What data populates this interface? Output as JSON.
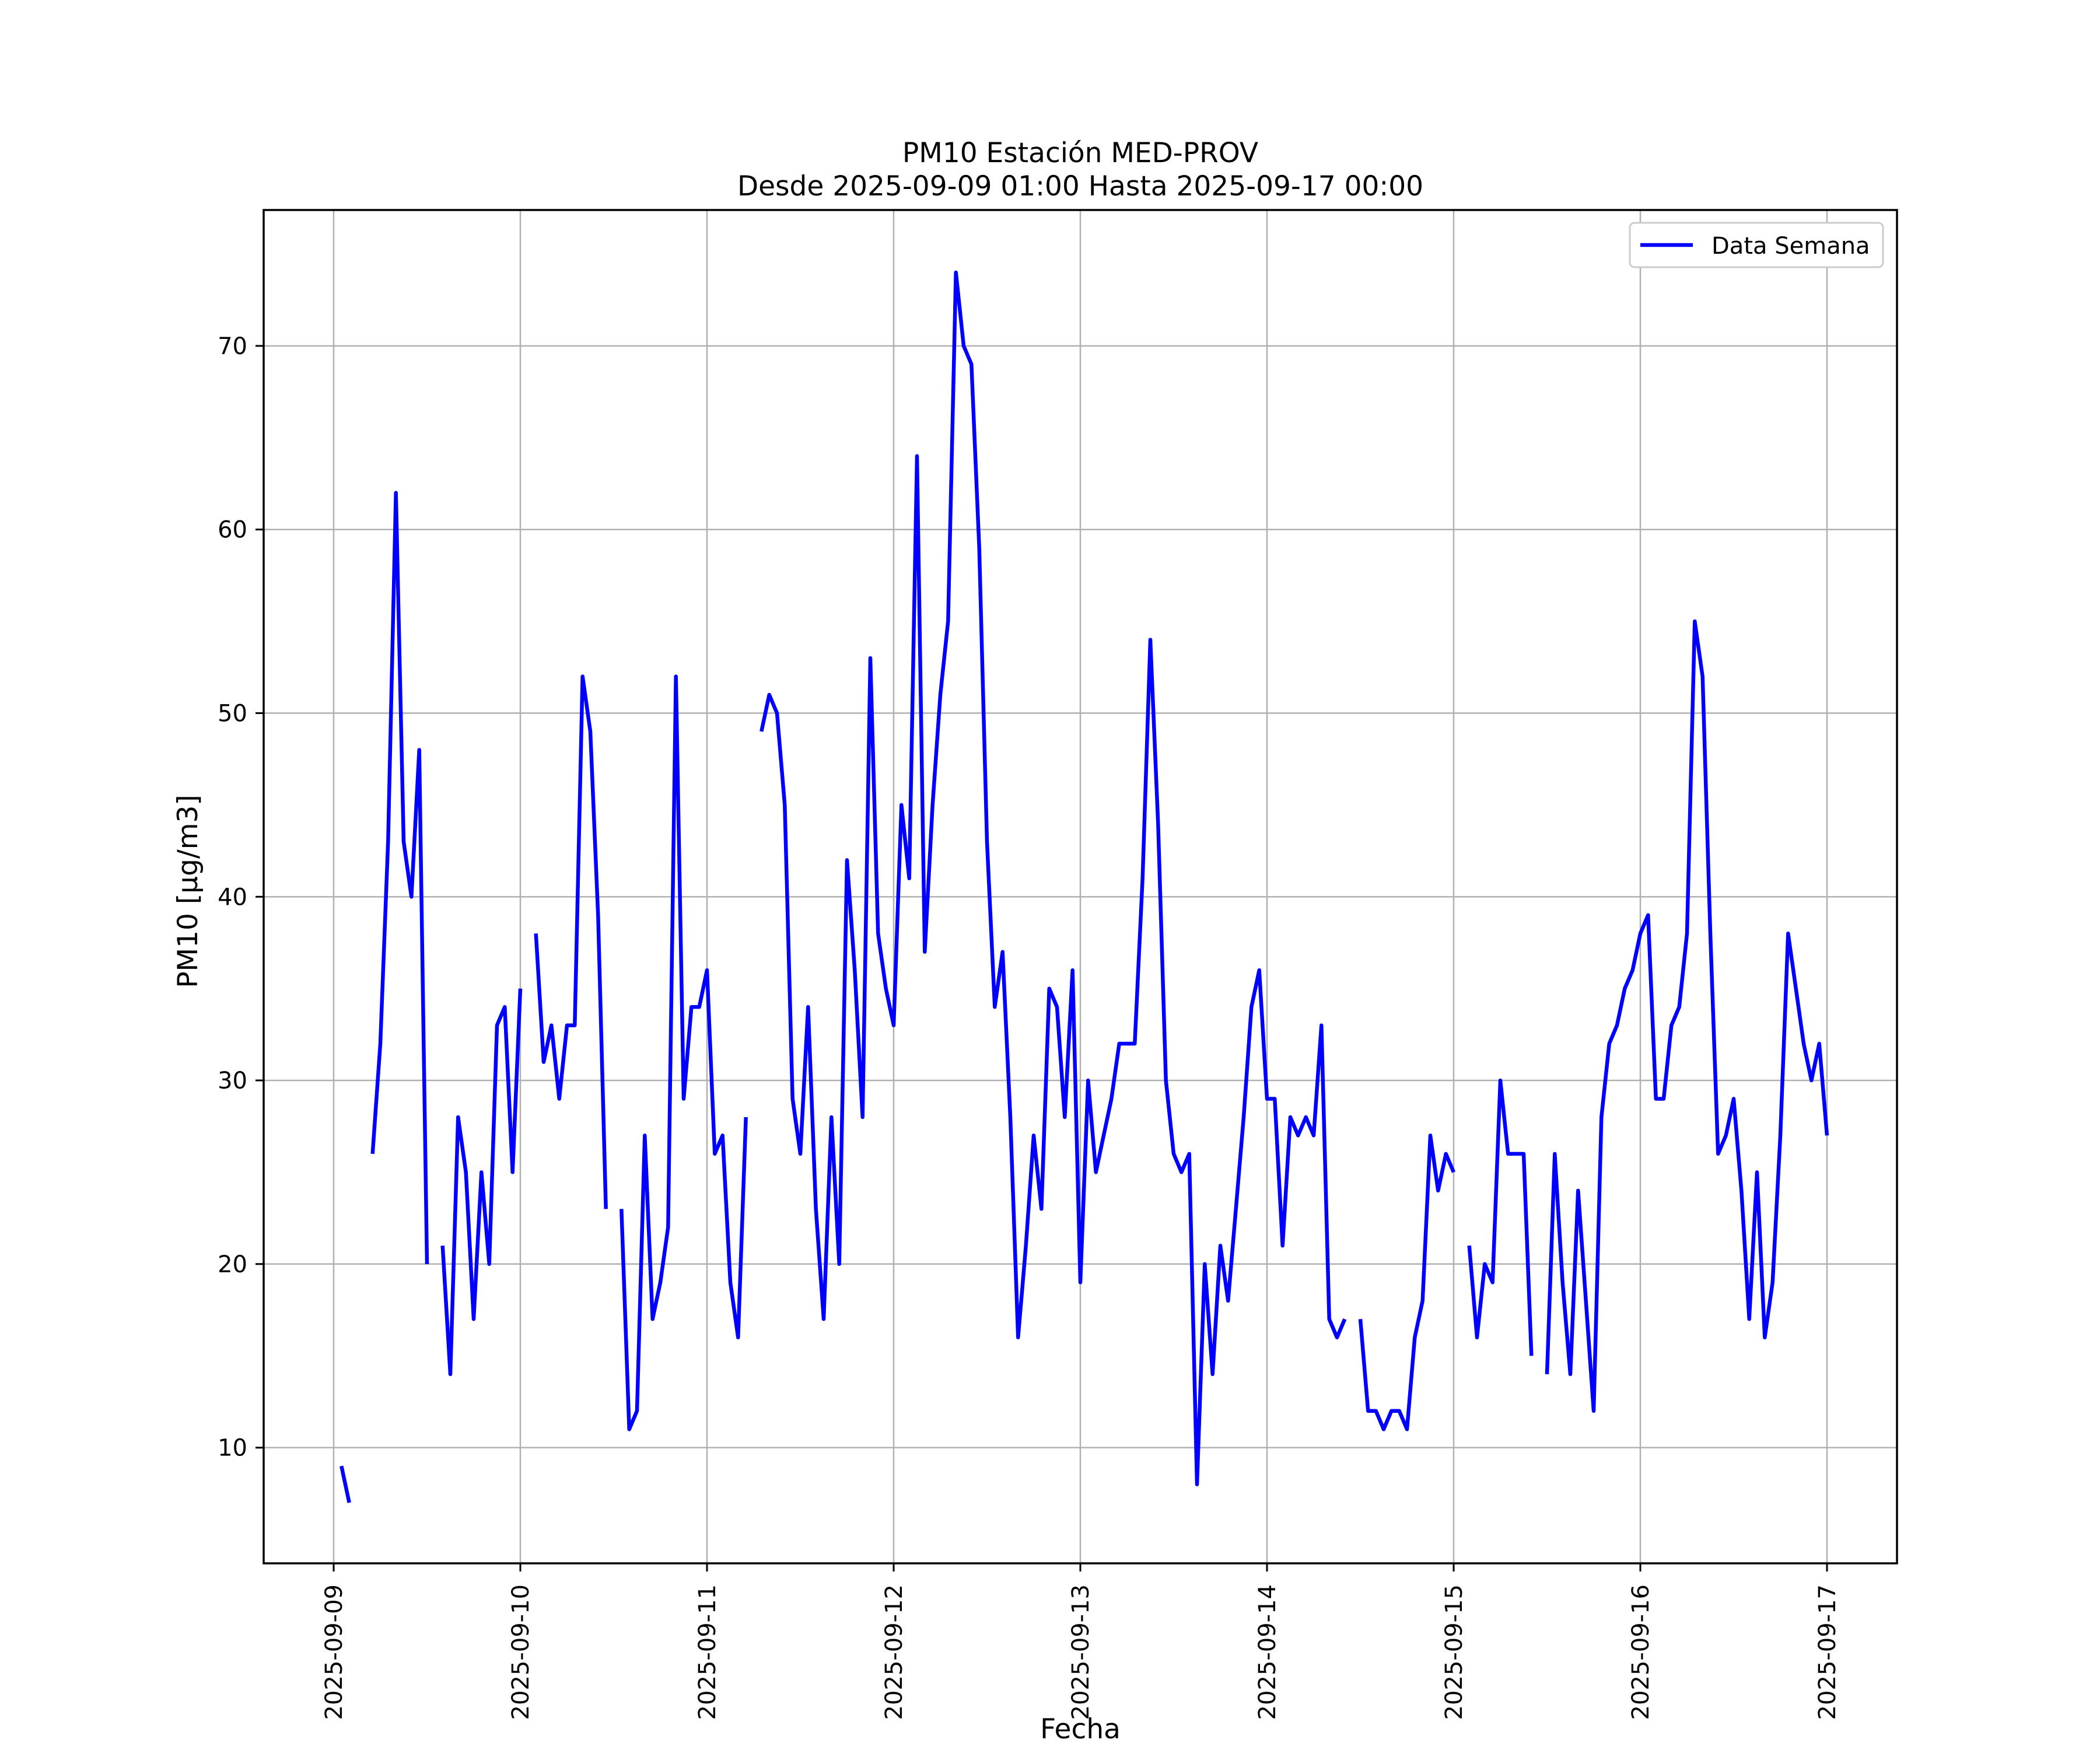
{
  "chart_data": {
    "type": "line",
    "title": "PM10 Estación MED-PROV",
    "subtitle": "Desde 2025-09-09 01:00 Hasta 2025-09-17 00:00",
    "xlabel": "Fecha",
    "ylabel": "PM10 [μg/m3]",
    "x_ticks": [
      "2025-09-09",
      "2025-09-10",
      "2025-09-11",
      "2025-09-12",
      "2025-09-13",
      "2025-09-14",
      "2025-09-15",
      "2025-09-16",
      "2025-09-17"
    ],
    "y_ticks": [
      10,
      20,
      30,
      40,
      50,
      60,
      70
    ],
    "xlim": [
      "2025-09-08 15:00",
      "2025-09-17 09:00"
    ],
    "ylim": [
      3.7,
      77.4
    ],
    "grid": true,
    "legend_position": "top-right",
    "series": [
      {
        "name": "Data Semana",
        "color": "#0000ff",
        "start": "2025-09-09 01:00",
        "interval_hours": 1,
        "values": [
          9,
          7,
          null,
          null,
          26,
          32,
          43,
          62,
          43,
          40,
          48,
          20,
          null,
          21,
          14,
          28,
          25,
          17,
          25,
          20,
          33,
          34,
          25,
          35,
          null,
          38,
          31,
          33,
          29,
          33,
          33,
          52,
          49,
          39,
          23,
          null,
          23,
          11,
          12,
          27,
          17,
          19,
          22,
          52,
          29,
          34,
          34,
          36,
          26,
          27,
          19,
          16,
          28,
          null,
          49,
          51,
          50,
          45,
          29,
          26,
          34,
          23,
          17,
          28,
          20,
          42,
          36,
          28,
          53,
          38,
          35,
          33,
          45,
          41,
          64,
          37,
          45,
          51,
          55,
          74,
          70,
          69,
          59,
          43,
          34,
          37,
          28,
          16,
          21,
          27,
          23,
          35,
          34,
          28,
          36,
          19,
          30,
          25,
          27,
          29,
          32,
          32,
          32,
          41,
          54,
          44,
          30,
          26,
          25,
          26,
          8,
          20,
          14,
          21,
          18,
          23,
          28,
          34,
          36,
          29,
          29,
          21,
          28,
          27,
          28,
          27,
          33,
          17,
          16,
          17,
          null,
          17,
          12,
          12,
          11,
          12,
          12,
          11,
          16,
          18,
          27,
          24,
          26,
          25,
          null,
          21,
          16,
          20,
          19,
          30,
          26,
          26,
          26,
          15,
          null,
          14,
          26,
          19,
          14,
          24,
          18,
          12,
          28,
          32,
          33,
          35,
          36,
          38,
          39,
          29,
          29,
          33,
          34,
          38,
          55,
          52,
          38,
          26,
          27,
          29,
          24,
          17,
          25,
          16,
          19,
          27,
          38,
          35,
          32,
          30,
          32,
          27
        ]
      }
    ]
  }
}
